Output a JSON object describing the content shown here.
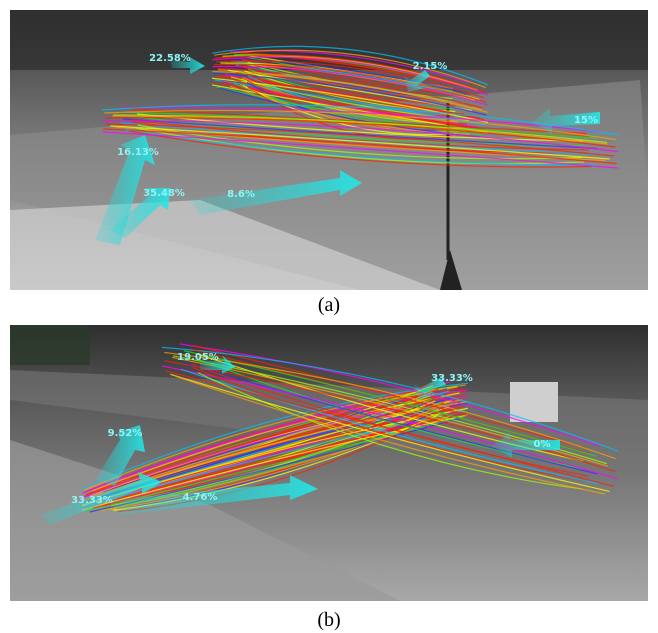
{
  "panels": [
    {
      "caption": "(a)",
      "labels": [
        "22.58%",
        "2.15%",
        "15%",
        "16.13%",
        "35.48%",
        "8.6%"
      ]
    },
    {
      "caption": "(b)",
      "labels": [
        "19.05%",
        "33.33%",
        "9.52%",
        "0%",
        "33.33%",
        "4.76%"
      ]
    }
  ]
}
